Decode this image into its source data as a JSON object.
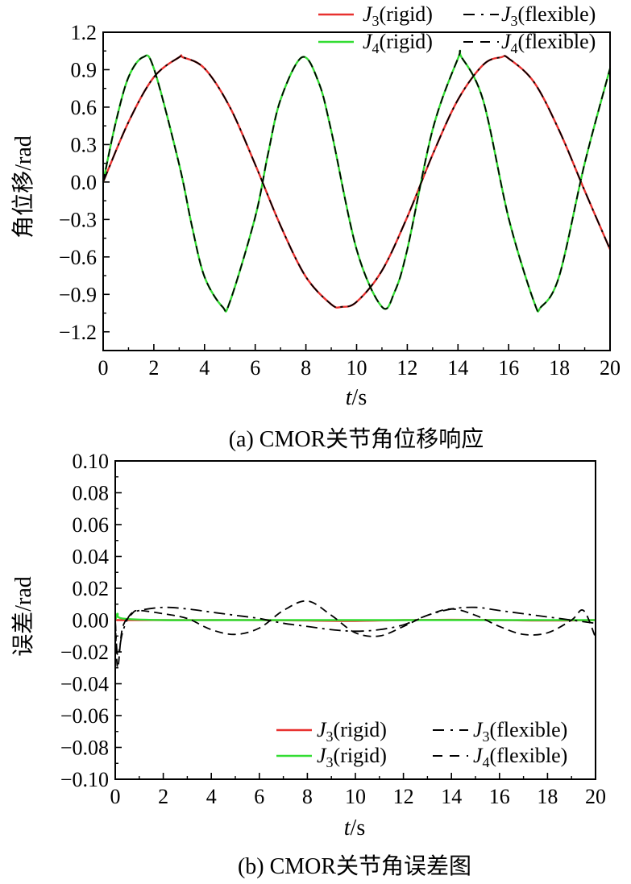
{
  "chart_data": [
    {
      "type": "line",
      "caption": "(a) CMOR关节角位移响应",
      "xlabel": "t/s",
      "ylabel": "角位移/rad",
      "xlim": [
        0,
        20
      ],
      "ylim": [
        -1.35,
        1.2
      ],
      "xticks": [
        "0",
        "2",
        "4",
        "6",
        "8",
        "10",
        "12",
        "14",
        "16",
        "18",
        "20"
      ],
      "yticks": [
        "1.2",
        "0.9",
        "0.6",
        "0.3",
        "0.0",
        "−0.3",
        "−0.6",
        "−0.9",
        "−1.2"
      ],
      "grid": false,
      "legend_position": "top-right",
      "series": [
        {
          "name": "J3(rigid)",
          "color": "#e8312f",
          "style": "solid",
          "x": [
            0,
            1,
            2,
            3,
            3.14,
            4,
            5,
            6,
            7,
            8,
            9,
            9.42,
            10,
            11,
            12,
            13,
            14,
            15,
            15.71,
            16,
            17,
            18,
            19,
            20
          ],
          "y": [
            0,
            0.48,
            0.84,
            1.0,
            1.0,
            0.91,
            0.6,
            0.14,
            -0.35,
            -0.76,
            -0.98,
            -1.0,
            -0.96,
            -0.71,
            -0.28,
            0.22,
            0.66,
            0.94,
            1.0,
            0.99,
            0.8,
            0.41,
            -0.07,
            -0.54
          ]
        },
        {
          "name": "J3(flexible)",
          "color": "#000000",
          "style": "dashdot",
          "x": [
            0,
            1,
            2,
            3,
            3.14,
            4,
            5,
            6,
            7,
            8,
            9,
            9.42,
            10,
            11,
            12,
            13,
            14,
            15,
            15.71,
            16,
            17,
            18,
            19,
            20
          ],
          "y": [
            0,
            0.48,
            0.84,
            1.0,
            1.0,
            0.91,
            0.6,
            0.14,
            -0.35,
            -0.76,
            -0.98,
            -1.0,
            -0.96,
            -0.71,
            -0.28,
            0.22,
            0.66,
            0.94,
            1.0,
            0.99,
            0.8,
            0.41,
            -0.07,
            -0.54
          ]
        },
        {
          "name": "J4(rigid)",
          "color": "#33dd33",
          "style": "solid",
          "x": [
            0,
            0.5,
            1,
            1.57,
            2,
            3,
            3.5,
            4,
            4.71,
            5,
            6,
            6.5,
            7,
            7.85,
            8.5,
            9,
            10,
            11,
            11.5,
            12,
            13,
            14,
            14.14,
            15,
            16,
            17,
            17.28,
            18,
            19,
            20
          ],
          "y": [
            0,
            0.48,
            0.84,
            1.0,
            0.91,
            0.14,
            -0.35,
            -0.76,
            -1.0,
            -0.96,
            -0.28,
            0.22,
            0.66,
            1.0,
            0.8,
            0.41,
            -0.54,
            -1.0,
            -0.88,
            -0.54,
            0.42,
            0.99,
            1.0,
            0.65,
            -0.29,
            -0.96,
            -1.0,
            -0.75,
            0.15,
            0.91
          ]
        },
        {
          "name": "J4(flexible)",
          "color": "#000000",
          "style": "dash",
          "x": [
            0,
            0.5,
            1,
            1.57,
            2,
            3,
            3.5,
            4,
            4.71,
            5,
            6,
            6.5,
            7,
            7.85,
            8.5,
            9,
            10,
            11,
            11.5,
            12,
            13,
            14,
            14.14,
            15,
            16,
            17,
            17.28,
            18,
            19,
            20
          ],
          "y": [
            0,
            0.48,
            0.84,
            1.0,
            0.91,
            0.14,
            -0.35,
            -0.76,
            -1.0,
            -0.96,
            -0.28,
            0.22,
            0.66,
            1.0,
            0.8,
            0.41,
            -0.54,
            -1.0,
            -0.88,
            -0.54,
            0.42,
            0.99,
            1.0,
            0.65,
            -0.29,
            -0.96,
            -1.0,
            -0.75,
            0.15,
            0.91
          ]
        }
      ],
      "legend": [
        {
          "label_main": "J",
          "label_sub": "3",
          "label_rest": "(rigid)",
          "series": 0
        },
        {
          "label_main": "J",
          "label_sub": "3",
          "label_rest": "(flexible)",
          "series": 1
        },
        {
          "label_main": "J",
          "label_sub": "4",
          "label_rest": "(rigid)",
          "series": 2
        },
        {
          "label_main": "J",
          "label_sub": "4",
          "label_rest": "(flexible)",
          "series": 3
        }
      ]
    },
    {
      "type": "line",
      "caption": "(b) CMOR关节角误差图",
      "xlabel": "t/s",
      "ylabel": "误差/rad",
      "xlim": [
        0,
        20
      ],
      "ylim": [
        -0.1,
        0.1
      ],
      "xticks": [
        "0",
        "2",
        "4",
        "6",
        "8",
        "10",
        "12",
        "14",
        "16",
        "18",
        "20"
      ],
      "yticks": [
        "0.10",
        "0.08",
        "0.06",
        "0.04",
        "0.02",
        "0.00",
        "−0.02",
        "−0.04",
        "−0.06",
        "−0.08",
        "−0.10"
      ],
      "grid": false,
      "legend_position": "bottom-right",
      "series": [
        {
          "name": "J3(rigid)",
          "color": "#e8312f",
          "style": "solid",
          "x": [
            0,
            2,
            4,
            6,
            8,
            10,
            12,
            14,
            16,
            18,
            20
          ],
          "y": [
            0,
            0,
            0,
            0,
            -0.0003,
            -0.0005,
            0,
            0.0002,
            0,
            -0.0003,
            0
          ]
        },
        {
          "name": "J3(flexible)",
          "color": "#000000",
          "style": "dashdot",
          "x": [
            0,
            0.1,
            0.3,
            0.6,
            1,
            2,
            3,
            4,
            5,
            6,
            7,
            8,
            9,
            10,
            11,
            12,
            13,
            14,
            15,
            16,
            17,
            18,
            19,
            20
          ],
          "y": [
            0,
            -0.022,
            -0.008,
            0.003,
            0.006,
            0.008,
            0.007,
            0.005,
            0.003,
            0.001,
            -0.002,
            -0.004,
            -0.006,
            -0.007,
            -0.006,
            -0.003,
            0.003,
            0.007,
            0.008,
            0.006,
            0.004,
            0.002,
            0.0,
            -0.002
          ]
        },
        {
          "name": "J3(rigid)",
          "color": "#33dd33",
          "style": "solid",
          "x": [
            0,
            0.05,
            0.1,
            0.3,
            2,
            4,
            6,
            8,
            10,
            12,
            14,
            16,
            18,
            20
          ],
          "y": [
            0,
            0.002,
            0.004,
            0.001,
            0,
            0,
            0,
            0,
            0,
            0,
            0,
            0,
            0,
            0
          ]
        },
        {
          "name": "J4(flexible)",
          "color": "#000000",
          "style": "dash",
          "x": [
            0,
            0.1,
            0.3,
            0.7,
            1,
            2,
            3,
            4,
            5,
            6,
            7,
            8,
            9,
            10,
            11,
            12,
            13,
            14,
            15,
            16,
            17,
            18,
            19,
            19.5,
            20
          ],
          "y": [
            0,
            -0.03,
            -0.005,
            0.004,
            0.006,
            0.004,
            0.001,
            -0.006,
            -0.009,
            -0.005,
            0.006,
            0.012,
            0.003,
            -0.008,
            -0.01,
            -0.004,
            0.003,
            0.007,
            0.003,
            -0.004,
            -0.009,
            -0.008,
            0.0,
            0.006,
            -0.011
          ]
        }
      ],
      "legend": [
        {
          "label_main": "J",
          "label_sub": "3",
          "label_rest": "(rigid)",
          "series": 0
        },
        {
          "label_main": "J",
          "label_sub": "3",
          "label_rest": "(flexible)",
          "series": 1
        },
        {
          "label_main": "J",
          "label_sub": "3",
          "label_rest": "(rigid)",
          "series": 2
        },
        {
          "label_main": "J",
          "label_sub": "4",
          "label_rest": "(flexible)",
          "series": 3
        }
      ]
    }
  ]
}
